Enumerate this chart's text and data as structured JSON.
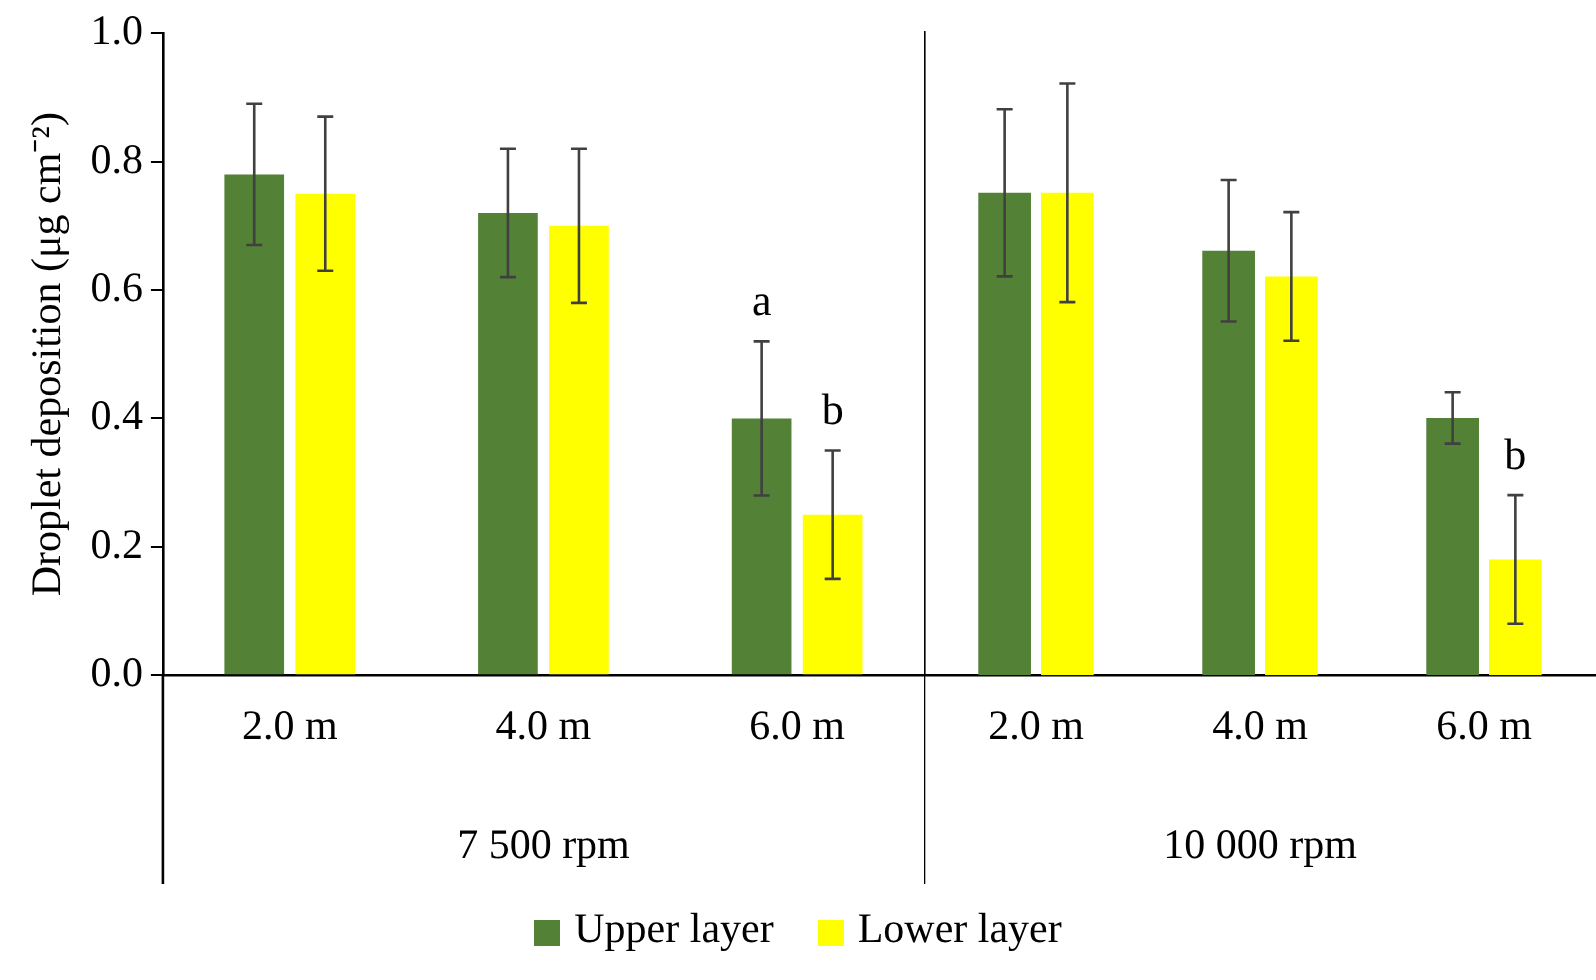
{
  "chart_data": [
    {
      "type": "bar",
      "ylabel": "Droplet deposition (μg cm⁻²)",
      "xlabel": "7 500 rpm",
      "categories": [
        "2.0 m",
        "4.0 m",
        "6.0 m"
      ],
      "series": [
        {
          "name": "Upper layer",
          "color": "#538135",
          "values": [
            0.78,
            0.72,
            0.4
          ],
          "errors": [
            [
              0.67,
              0.89
            ],
            [
              0.62,
              0.82
            ],
            [
              0.28,
              0.52
            ]
          ]
        },
        {
          "name": "Lower layer",
          "color": "#ffff00",
          "values": [
            0.75,
            0.7,
            0.25
          ],
          "errors": [
            [
              0.63,
              0.87
            ],
            [
              0.58,
              0.82
            ],
            [
              0.15,
              0.35
            ]
          ]
        }
      ],
      "ylim": [
        0,
        1
      ],
      "yticks": [
        {
          "value": 0,
          "label": "0.0"
        },
        {
          "value": 0.2,
          "label": "0.2"
        },
        {
          "value": 0.4,
          "label": "0.4"
        },
        {
          "value": 0.6,
          "label": "0.6"
        },
        {
          "value": 0.8,
          "label": "0.8"
        },
        {
          "value": 1,
          "label": "1.0"
        }
      ],
      "grid": false,
      "legend": "bottom",
      "annotations": [
        {
          "text": "a",
          "x": "6.0 m",
          "y": 0.4
        },
        {
          "text": "b",
          "x": "6.0 m",
          "y": 0.25
        }
      ]
    },
    {
      "type": "bar",
      "xlabel": "10 000 rpm",
      "categories": [
        "2.0 m",
        "4.0 m",
        "6.0 m"
      ],
      "series": [
        {
          "color": "#538135",
          "values": [
            0.75,
            0.66,
            0.4
          ],
          "errors": [
            [
              0.62,
              0.88
            ],
            [
              0.55,
              0.77
            ],
            [
              0.36,
              0.44
            ]
          ]
        },
        {
          "color": "#ffff00",
          "values": [
            0.75,
            0.62,
            0.18
          ],
          "errors": [
            [
              0.58,
              0.92
            ],
            [
              0.52,
              0.72
            ],
            [
              0.08,
              0.28
            ]
          ]
        }
      ],
      "ylim": [
        0,
        1
      ],
      "tick_labels": "x",
      "grid": false,
      "annotations": [
        {
          "text": "b",
          "x": "6.0 m",
          "y": 0.18
        }
      ]
    }
  ]
}
